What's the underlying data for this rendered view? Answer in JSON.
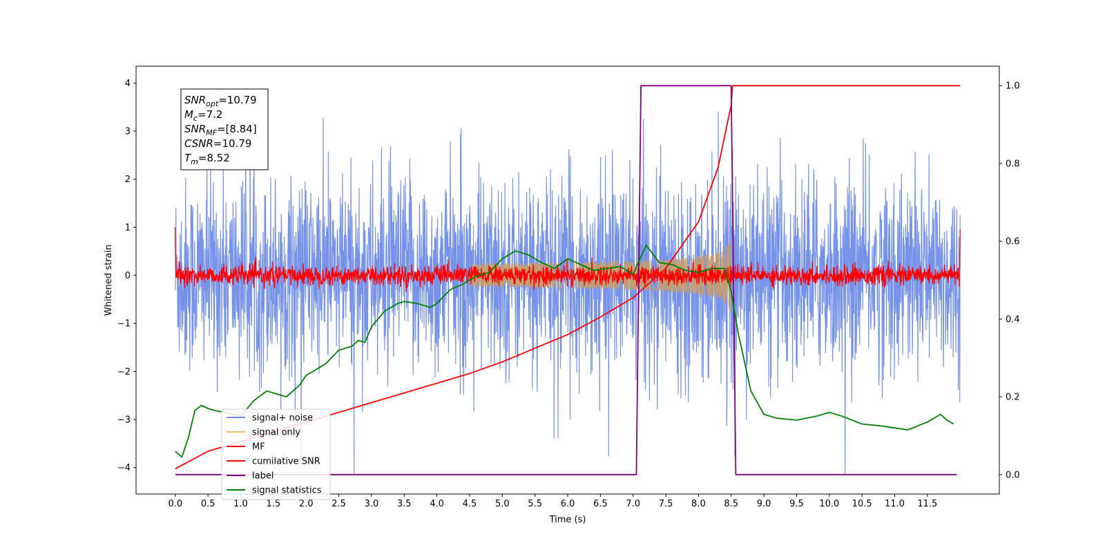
{
  "chart_data": {
    "type": "line",
    "title": "",
    "xlabel": "Time (s)",
    "ylabel": "Whitened strain",
    "xlim": [
      -0.6,
      12.6
    ],
    "ylim": [
      -4.55,
      4.35
    ],
    "ylim_right": [
      -0.05,
      1.05
    ],
    "xticks": [
      "0.0",
      "0.5",
      "1.0",
      "1.5",
      "2.0",
      "2.5",
      "3.0",
      "3.5",
      "4.0",
      "4.5",
      "5.0",
      "5.5",
      "6.0",
      "6.5",
      "7.0",
      "7.5",
      "8.0",
      "8.5",
      "9.0",
      "9.5",
      "10.0",
      "10.5",
      "11.0",
      "11.5"
    ],
    "yticks_left": [
      "4",
      "3",
      "2",
      "1",
      "0",
      "−1",
      "−2",
      "−3",
      "−4"
    ],
    "yticks_right": [
      "1.0",
      "0.8",
      "0.6",
      "0.4",
      "0.2",
      "0.0"
    ],
    "grid": false,
    "legend_position": "lower-left",
    "annotation": {
      "lines": [
        {
          "base": "SNR",
          "sub": "opt",
          "value": "=10.79"
        },
        {
          "base": "M",
          "sub": "c",
          "value": "=7.2"
        },
        {
          "base": "SNR",
          "sub": "MF",
          "value": "=[8.84]"
        },
        {
          "base": "CSNR",
          "sub": "",
          "value": "=10.79"
        },
        {
          "base": "T",
          "sub": "m",
          "value": "=8.52"
        }
      ]
    },
    "series": [
      {
        "name": "signal+ noise",
        "axis": "left",
        "color": "#6f8de8",
        "amplitude_typical": 2.2,
        "amplitude_max": 3.95,
        "amplitude_min": -4.15,
        "t_start": 0.0,
        "t_end": 12.0
      },
      {
        "name": "signal only",
        "axis": "left",
        "color": "#f5c06a",
        "t_start": 4.5,
        "t_end": 8.52,
        "envelope_end": 0.95
      },
      {
        "name": "MF",
        "axis": "left",
        "color": "#ff0000",
        "amplitude_typical": 0.2,
        "t_start": 0.0,
        "t_end": 12.0
      },
      {
        "name": "cumilative SNR",
        "axis": "right",
        "color": "#ff0000",
        "x": [
          0.0,
          0.5,
          1.0,
          1.5,
          2.0,
          2.5,
          3.0,
          3.5,
          4.0,
          4.5,
          5.0,
          5.5,
          6.0,
          6.5,
          7.0,
          7.5,
          8.0,
          8.3,
          8.5,
          8.52,
          12.0
        ],
        "values": [
          0.015,
          0.06,
          0.085,
          0.11,
          0.135,
          0.16,
          0.185,
          0.21,
          0.235,
          0.26,
          0.29,
          0.325,
          0.36,
          0.405,
          0.455,
          0.53,
          0.65,
          0.79,
          0.95,
          1.0,
          1.0
        ]
      },
      {
        "name": "label",
        "axis": "right",
        "color": "#800080",
        "x": [
          0.0,
          7.05,
          7.12,
          8.5,
          8.57,
          11.95
        ],
        "values": [
          0.0,
          0.0,
          1.0,
          1.0,
          0.0,
          0.0
        ]
      },
      {
        "name": "signal statistics",
        "axis": "right",
        "color": "#008000",
        "x": [
          0.0,
          0.1,
          0.2,
          0.3,
          0.4,
          0.5,
          0.6,
          0.8,
          1.0,
          1.2,
          1.4,
          1.5,
          1.7,
          1.9,
          2.0,
          2.1,
          2.3,
          2.5,
          2.7,
          2.8,
          2.9,
          3.0,
          3.2,
          3.4,
          3.5,
          3.7,
          3.9,
          4.0,
          4.2,
          4.4,
          4.6,
          4.8,
          5.0,
          5.2,
          5.4,
          5.6,
          5.8,
          6.0,
          6.2,
          6.4,
          6.6,
          6.8,
          7.0,
          7.2,
          7.4,
          7.6,
          7.8,
          8.0,
          8.2,
          8.4,
          8.5,
          8.6,
          8.8,
          9.0,
          9.2,
          9.5,
          9.8,
          10.0,
          10.2,
          10.5,
          10.8,
          11.0,
          11.2,
          11.5,
          11.7,
          11.8,
          11.9
        ],
        "values": [
          0.06,
          0.045,
          0.095,
          0.165,
          0.178,
          0.17,
          0.165,
          0.158,
          0.15,
          0.19,
          0.215,
          0.21,
          0.2,
          0.23,
          0.255,
          0.265,
          0.285,
          0.32,
          0.33,
          0.345,
          0.34,
          0.38,
          0.42,
          0.44,
          0.445,
          0.44,
          0.43,
          0.44,
          0.475,
          0.49,
          0.51,
          0.52,
          0.555,
          0.575,
          0.565,
          0.545,
          0.53,
          0.555,
          0.54,
          0.525,
          0.53,
          0.535,
          0.515,
          0.59,
          0.545,
          0.54,
          0.525,
          0.52,
          0.53,
          0.53,
          0.47,
          0.37,
          0.215,
          0.155,
          0.145,
          0.14,
          0.15,
          0.16,
          0.15,
          0.13,
          0.125,
          0.12,
          0.115,
          0.135,
          0.155,
          0.14,
          0.13
        ]
      }
    ]
  }
}
